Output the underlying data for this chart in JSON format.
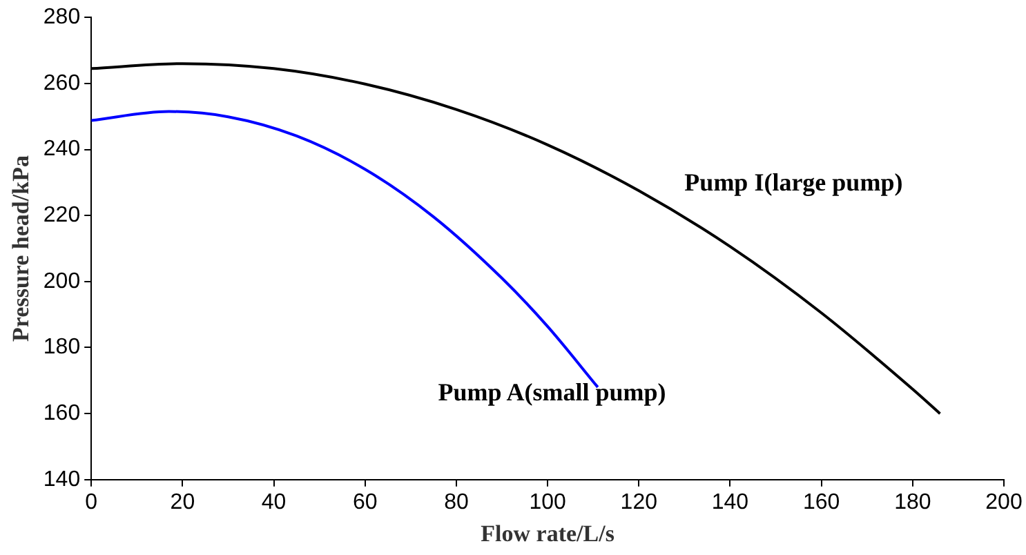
{
  "chart_data": {
    "type": "line",
    "xlabel": "Flow rate/L/s",
    "ylabel": "Pressure head/kPa",
    "xlim": [
      0,
      200
    ],
    "xticks": [
      0,
      20,
      40,
      60,
      80,
      100,
      120,
      140,
      160,
      180,
      200
    ],
    "ylim": [
      140,
      280
    ],
    "yticks": [
      140,
      160,
      180,
      200,
      220,
      240,
      260,
      280
    ],
    "grid": false,
    "legend": false,
    "marker": "none",
    "line_style": "solid",
    "series": [
      {
        "name": "Pump I(large pump)",
        "color": "#000000",
        "x": [
          0,
          20,
          40,
          60,
          80,
          100,
          120,
          140,
          160,
          180,
          186
        ],
        "values": [
          264.5,
          266,
          264.5,
          259.8,
          252.1,
          241.4,
          227.5,
          210.6,
          190.5,
          167.4,
          160
        ]
      },
      {
        "name": "Pump A(small pump)",
        "color": "#0000ff",
        "x": [
          0,
          17,
          30,
          45,
          60,
          75,
          90,
          100,
          111
        ],
        "values": [
          248.8,
          251.5,
          249.9,
          244.1,
          234,
          219.6,
          201,
          186.4,
          168
        ]
      }
    ]
  }
}
